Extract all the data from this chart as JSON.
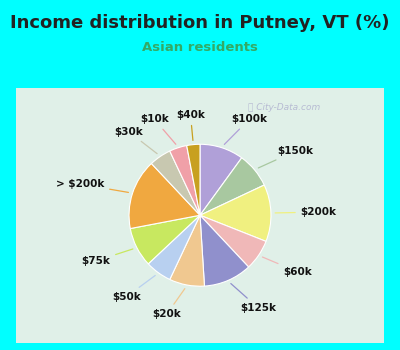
{
  "title": "Income distribution in Putney, VT (%)",
  "subtitle": "Asian residents",
  "title_fontsize": 13,
  "subtitle_fontsize": 9.5,
  "title_color": "#222222",
  "subtitle_color": "#33aa66",
  "bg_cyan": "#00ffff",
  "bg_chart": "#e0f0e8",
  "labels": [
    "$100k",
    "$150k",
    "$200k",
    "$60k",
    "$125k",
    "$20k",
    "$50k",
    "$75k",
    "> $200k",
    "$30k",
    "$10k",
    "$40k"
  ],
  "values": [
    10,
    8,
    13,
    7,
    11,
    8,
    6,
    9,
    16,
    5,
    4,
    3
  ],
  "colors": [
    "#b0a0d8",
    "#a8c8a0",
    "#f0f080",
    "#f0b8b8",
    "#9090cc",
    "#f0c890",
    "#b8d0f0",
    "#c8e860",
    "#f0a840",
    "#c8c8b0",
    "#f0a0a8",
    "#c8a020"
  ],
  "startangle": 90,
  "label_fontsize": 7.5
}
